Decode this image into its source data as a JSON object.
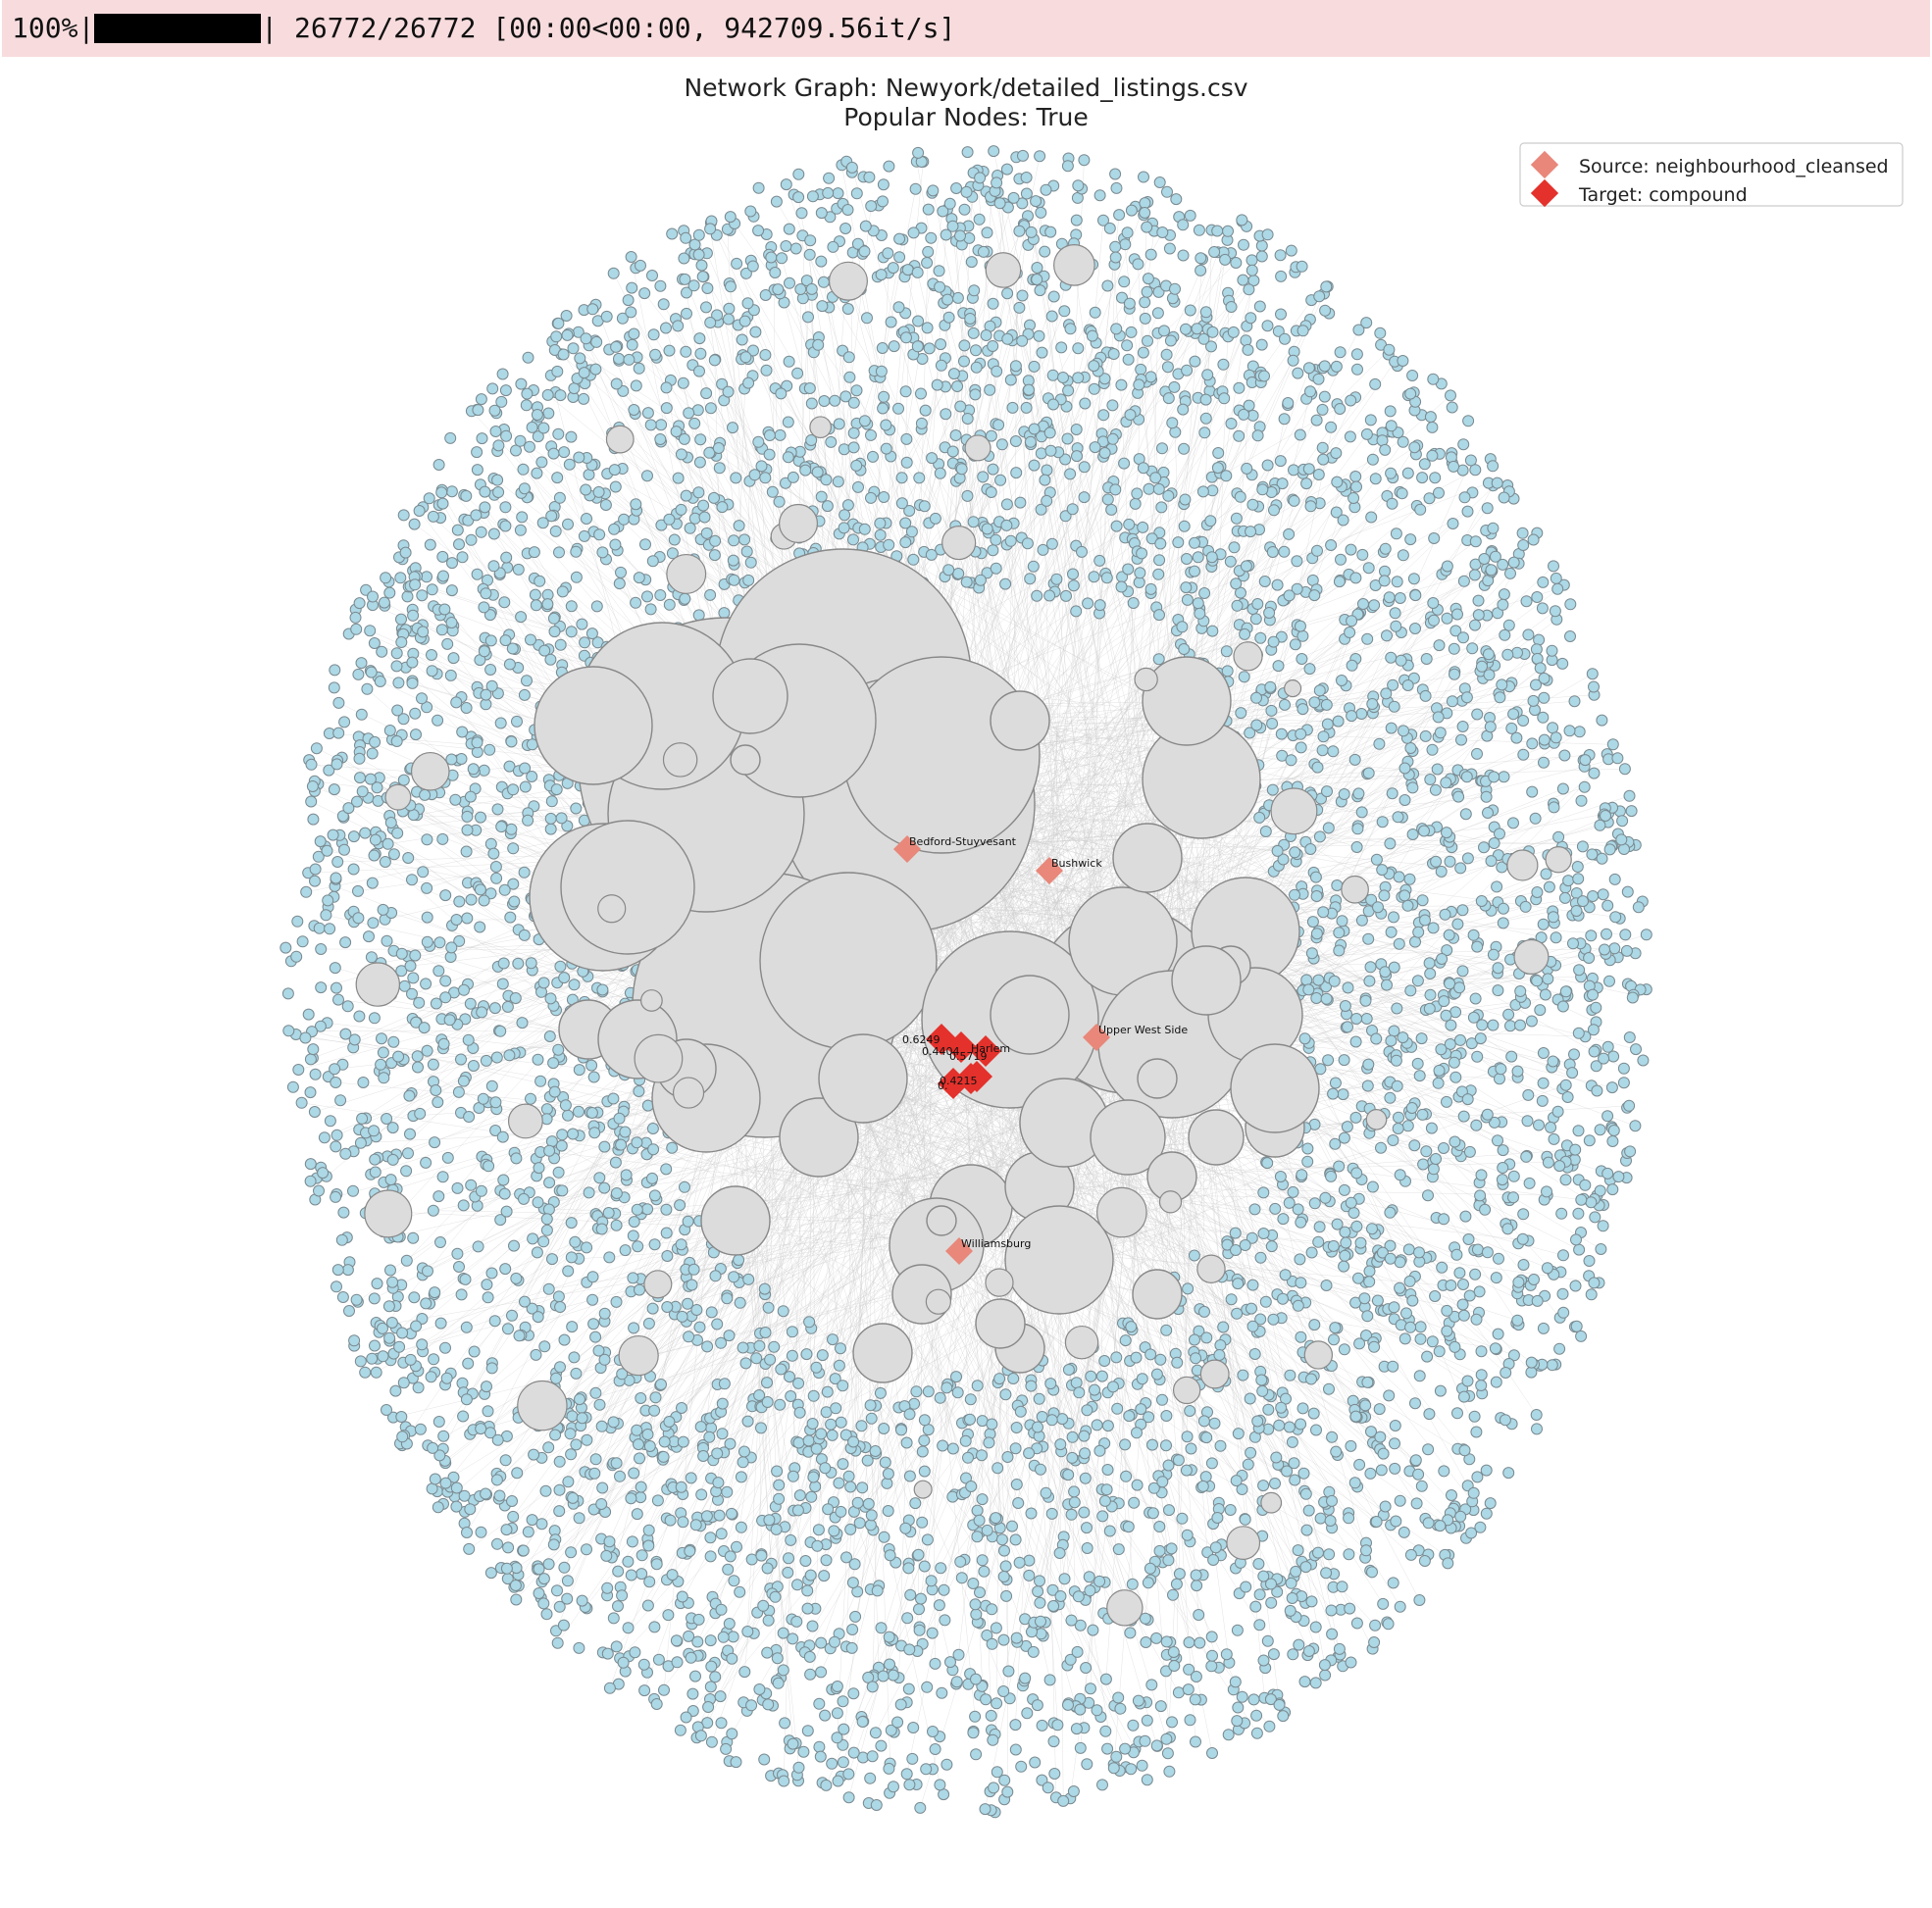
{
  "progress": {
    "percent_label": "100%",
    "bar_left": "|",
    "bar_right": "|",
    "fraction": 1.0,
    "stats": " 26772/26772 [00:00<00:00, 942709.56it/s]"
  },
  "chart_data": {
    "type": "network",
    "title_line1": "Network Graph: Newyork/detailed_listings.csv",
    "title_line2": "Popular Nodes: True",
    "legend_placement": "top-right",
    "legend": [
      {
        "label": "Source: neighbourhood_cleansed",
        "marker": "diamond",
        "color": "#e8877a"
      },
      {
        "label": "Target: compound",
        "marker": "diamond",
        "color": "#e4312b"
      }
    ],
    "source_nodes": [
      "Bedford-Stuyvesant",
      "Bushwick",
      "Upper West Side",
      "Williamsburg",
      "Harlem"
    ],
    "edge_weight_labels": [
      "0.6249",
      "0.4404",
      "0.5719",
      "0.4215",
      "0."
    ],
    "colors": {
      "leaf_node_fill": "#add8e6",
      "leaf_node_edge": "#7a8a90",
      "hub_node_fill": "#dcdcdc",
      "hub_node_edge": "#888888",
      "edge": "#cccccc",
      "source": "#e8877a",
      "target": "#e4312b",
      "progress_bg": "#f8dcdd"
    }
  }
}
